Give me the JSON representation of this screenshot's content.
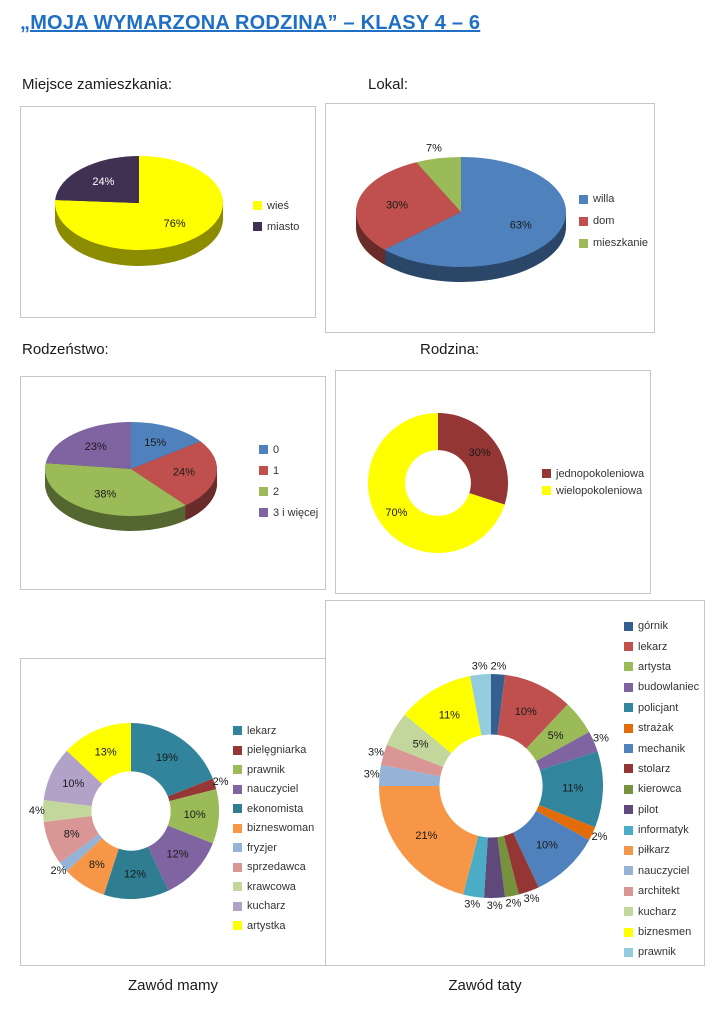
{
  "title": "„MOJA WYMARZONA RODZINA” – KLASY 4 – 6",
  "title_color": "#1F6FC4",
  "sections": {
    "residence": "Miejsce zamieszkania:",
    "lokal": "Lokal:",
    "siblings": "Rodzeństwo:",
    "family": "Rodzina:"
  },
  "captions": {
    "mom": "Zawód mamy",
    "dad": "Zawód taty"
  },
  "chart_data": [
    {
      "id": "residence",
      "type": "pie",
      "style": "pie3d",
      "section": "Miejsce zamieszkania:",
      "legend_position": "right",
      "labels": [
        "wieś",
        "miasto"
      ],
      "values": [
        76,
        24
      ],
      "colors": [
        "#FFFF00",
        "#403152"
      ]
    },
    {
      "id": "lokal",
      "type": "pie",
      "style": "pie3d",
      "section": "Lokal:",
      "legend_position": "right",
      "labels": [
        "willa",
        "dom",
        "mieszkanie"
      ],
      "values": [
        63,
        30,
        7
      ],
      "colors": [
        "#4F81BD",
        "#C0504D",
        "#9BBB59"
      ]
    },
    {
      "id": "siblings",
      "type": "pie",
      "style": "pie3d",
      "section": "Rodzeństwo:",
      "legend_position": "right",
      "labels": [
        "0",
        "1",
        "2",
        "3 i więcej"
      ],
      "values": [
        15,
        24,
        38,
        23
      ],
      "colors": [
        "#4F81BD",
        "#C0504D",
        "#9BBB59",
        "#8064A2"
      ]
    },
    {
      "id": "family",
      "type": "pie",
      "style": "donut",
      "section": "Rodzina:",
      "legend_position": "right",
      "labels": [
        "jednopokoleniowa",
        "wielopokoleniowa"
      ],
      "values": [
        30,
        70
      ],
      "colors": [
        "#943634",
        "#FFFF00"
      ]
    },
    {
      "id": "mom",
      "type": "pie",
      "style": "donut",
      "caption": "Zawód mamy",
      "legend_position": "right",
      "labels": [
        "lekarz",
        "pielęgniarka",
        "prawnik",
        "nauczyciel",
        "ekonomista",
        "bizneswoman",
        "fryzjer",
        "sprzedawca",
        "krawcowa",
        "kucharz",
        "artystka"
      ],
      "values": [
        19,
        2,
        10,
        12,
        12,
        8,
        2,
        8,
        4,
        10,
        13
      ],
      "colors": [
        "#31849B",
        "#953735",
        "#9BBB59",
        "#8064A2",
        "#2E7D91",
        "#F79646",
        "#95B3D7",
        "#D99694",
        "#C3D69B",
        "#B3A2C7",
        "#FFFF00"
      ]
    },
    {
      "id": "dad",
      "type": "pie",
      "style": "donut",
      "caption": "Zawód taty",
      "legend_position": "right",
      "labels": [
        "górnik",
        "lekarz",
        "artysta",
        "budowlaniec",
        "policjant",
        "strażak",
        "mechanik",
        "stolarz",
        "kierowca",
        "pilot",
        "informatyk",
        "piłkarz",
        "nauczyciel",
        "architekt",
        "kucharz",
        "biznesmen",
        "prawnik"
      ],
      "values": [
        2,
        10,
        5,
        3,
        11,
        2,
        10,
        3,
        2,
        3,
        3,
        21,
        3,
        3,
        5,
        11,
        3
      ],
      "colors": [
        "#365F91",
        "#C0504D",
        "#9BBB59",
        "#8064A2",
        "#31859C",
        "#E26B0A",
        "#4F81BD",
        "#943634",
        "#76923C",
        "#5F497A",
        "#4BACC6",
        "#F79646",
        "#95B3D7",
        "#D99694",
        "#C3D69B",
        "#FFFF00",
        "#93CDDD"
      ]
    }
  ]
}
